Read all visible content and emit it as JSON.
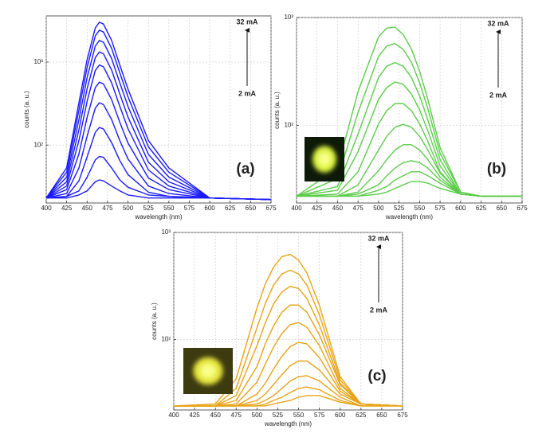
{
  "chart_data": [
    {
      "type": "line",
      "panel_label": "(a)",
      "top_annotation": "32 mA",
      "bottom_annotation": "2 mA",
      "xlabel": "wavelength (nm)",
      "ylabel": "counts (a. u.)",
      "log_y": true,
      "grid": true,
      "xlim": [
        400,
        675
      ],
      "xticks": [
        400,
        425,
        450,
        475,
        500,
        525,
        550,
        575,
        600,
        625,
        650,
        675
      ],
      "ylim": [
        20,
        3600
      ],
      "yticks": [
        {
          "value": 100,
          "label": "10²"
        },
        {
          "value": 1000,
          "label": "10³"
        }
      ],
      "x": [
        400,
        425,
        440,
        450,
        460,
        465,
        470,
        480,
        490,
        500,
        525,
        550,
        600,
        675
      ],
      "series": [
        {
          "color": "#1a1aff",
          "values": [
            23,
            23,
            25,
            28,
            36,
            38,
            37,
            32,
            28,
            25,
            23,
            23,
            23,
            22
          ]
        },
        {
          "color": "#1a1aff",
          "values": [
            23,
            24,
            28,
            41,
            66,
            73,
            71,
            53,
            38,
            31,
            25,
            24,
            23,
            22
          ]
        },
        {
          "color": "#1a1aff",
          "values": [
            23,
            24,
            37,
            72,
            142,
            163,
            156,
            107,
            65,
            44,
            27,
            24,
            23,
            22
          ]
        },
        {
          "color": "#1a1aff",
          "values": [
            23,
            26,
            53,
            128,
            278,
            323,
            308,
            203,
            113,
            68,
            32,
            26,
            23,
            22
          ]
        },
        {
          "color": "#1a1aff",
          "values": [
            23,
            29,
            78,
            216,
            491,
            573,
            546,
            353,
            188,
            106,
            40,
            29,
            23,
            22
          ]
        },
        {
          "color": "#1a1aff",
          "values": [
            23,
            32,
            113,
            338,
            788,
            923,
            878,
            563,
            293,
            158,
            50,
            32,
            23,
            22
          ]
        },
        {
          "color": "#1a1aff",
          "values": [
            23,
            36,
            153,
            478,
            1128,
            1323,
            1258,
            803,
            413,
            218,
            62,
            36,
            23,
            22
          ]
        },
        {
          "color": "#1a1aff",
          "values": [
            23,
            41,
            203,
            653,
            1553,
            1823,
            1733,
            1103,
            563,
            293,
            77,
            41,
            23,
            22
          ]
        },
        {
          "color": "#1a1aff",
          "values": [
            23,
            47,
            263,
            863,
            2063,
            2423,
            2303,
            1463,
            743,
            383,
            95,
            47,
            23,
            22
          ]
        },
        {
          "color": "#1a1aff",
          "values": [
            23,
            53,
            323,
            1073,
            2573,
            3023,
            2873,
            1823,
            923,
            473,
            113,
            53,
            23,
            22
          ]
        }
      ]
    },
    {
      "type": "line",
      "panel_label": "(b)",
      "top_annotation": "32 mA",
      "bottom_annotation": "2 mA",
      "xlabel": "wavelength (nm)",
      "ylabel": "counts (a. u.)",
      "log_y": true,
      "grid": true,
      "xlim": [
        400,
        675
      ],
      "xticks": [
        400,
        425,
        450,
        475,
        500,
        525,
        550,
        575,
        600,
        625,
        650,
        675
      ],
      "ylim": [
        19,
        1000
      ],
      "yticks": [
        {
          "value": 100,
          "label": "10²"
        },
        {
          "value": 1000,
          "label": "10³"
        }
      ],
      "x": [
        400,
        450,
        475,
        500,
        510,
        520,
        530,
        540,
        550,
        560,
        575,
        600,
        625,
        675
      ],
      "series": [
        {
          "color": "#5ccc4a",
          "values": [
            22,
            22,
            22,
            23,
            24,
            26,
            28,
            30,
            30,
            29,
            26,
            23,
            22,
            22
          ]
        },
        {
          "color": "#5ccc4a",
          "values": [
            22,
            22,
            22,
            25,
            27,
            31,
            34,
            37,
            37,
            34,
            29,
            23,
            22,
            22
          ]
        },
        {
          "color": "#5ccc4a",
          "values": [
            22,
            22,
            23,
            28,
            34,
            40,
            45,
            47,
            45,
            40,
            31,
            23,
            22,
            22
          ]
        },
        {
          "color": "#5ccc4a",
          "values": [
            22,
            22,
            24,
            38,
            48,
            59,
            66,
            66,
            59,
            48,
            33,
            23,
            22,
            22
          ]
        },
        {
          "color": "#5ccc4a",
          "values": [
            22,
            22,
            28,
            59,
            79,
            96,
            102,
            96,
            79,
            59,
            36,
            23,
            22,
            22
          ]
        },
        {
          "color": "#5ccc4a",
          "values": [
            22,
            23,
            37,
            103,
            137,
            159,
            159,
            137,
            103,
            71,
            37,
            23,
            22,
            22
          ]
        },
        {
          "color": "#5ccc4a",
          "values": [
            22,
            25,
            57,
            174,
            224,
            252,
            240,
            195,
            139,
            89,
            42,
            23,
            22,
            22
          ]
        },
        {
          "color": "#5ccc4a",
          "values": [
            22,
            27,
            83,
            278,
            353,
            382,
            353,
            278,
            188,
            112,
            48,
            23,
            22,
            22
          ]
        },
        {
          "color": "#5ccc4a",
          "values": [
            22,
            32,
            132,
            435,
            545,
            572,
            506,
            385,
            248,
            143,
            55,
            24,
            22,
            22
          ]
        },
        {
          "color": "#5ccc4a",
          "values": [
            22,
            40,
            206,
            662,
            798,
            814,
            694,
            510,
            318,
            174,
            62,
            24,
            22,
            22
          ]
        }
      ]
    },
    {
      "type": "line",
      "panel_label": "(c)",
      "top_annotation": "32 mA",
      "bottom_annotation": "2 mA",
      "xlabel": "wavelength (nm)",
      "ylabel": "counts (a. u.)",
      "log_y": true,
      "grid": true,
      "xlim": [
        400,
        675
      ],
      "xticks": [
        400,
        425,
        450,
        475,
        500,
        525,
        550,
        575,
        600,
        625,
        650,
        675
      ],
      "ylim": [
        22,
        1000
      ],
      "yticks": [
        {
          "value": 100,
          "label": "10²"
        },
        {
          "value": 1000,
          "label": "10³"
        }
      ],
      "x": [
        400,
        450,
        475,
        500,
        510,
        520,
        530,
        540,
        550,
        560,
        575,
        600,
        625,
        675
      ],
      "series": [
        {
          "color": "#e8a316",
          "values": [
            24,
            24,
            24,
            24,
            24,
            25,
            26,
            27,
            29,
            30,
            30,
            26,
            24,
            24
          ]
        },
        {
          "color": "#e8a316",
          "values": [
            24,
            24,
            24,
            24,
            25,
            27,
            29,
            32,
            35,
            36,
            34,
            27,
            24,
            24
          ]
        },
        {
          "color": "#e8a316",
          "values": [
            24,
            24,
            24,
            25,
            27,
            30,
            35,
            41,
            45,
            46,
            41,
            29,
            24,
            24
          ]
        },
        {
          "color": "#e8a316",
          "values": [
            24,
            24,
            24,
            27,
            31,
            38,
            47,
            57,
            63,
            63,
            52,
            31,
            25,
            24
          ]
        },
        {
          "color": "#e8a316",
          "values": [
            24,
            24,
            24,
            31,
            39,
            53,
            70,
            86,
            94,
            91,
            68,
            33,
            25,
            24
          ]
        },
        {
          "color": "#e8a316",
          "values": [
            24,
            24,
            25,
            40,
            59,
            85,
            114,
            138,
            144,
            130,
            88,
            35,
            25,
            24
          ]
        },
        {
          "color": "#e8a316",
          "values": [
            24,
            24,
            27,
            56,
            91,
            134,
            180,
            210,
            210,
            180,
            111,
            38,
            25,
            24
          ]
        },
        {
          "color": "#e8a316",
          "values": [
            24,
            24,
            30,
            88,
            143,
            215,
            279,
            314,
            300,
            242,
            137,
            39,
            25,
            24
          ]
        },
        {
          "color": "#e8a316",
          "values": [
            24,
            24,
            35,
            129,
            217,
            322,
            410,
            444,
            410,
            322,
            171,
            42,
            25,
            24
          ]
        },
        {
          "color": "#e8a316",
          "values": [
            24,
            25,
            43,
            198,
            330,
            474,
            594,
            624,
            552,
            420,
            210,
            45,
            25,
            24
          ]
        }
      ]
    }
  ]
}
